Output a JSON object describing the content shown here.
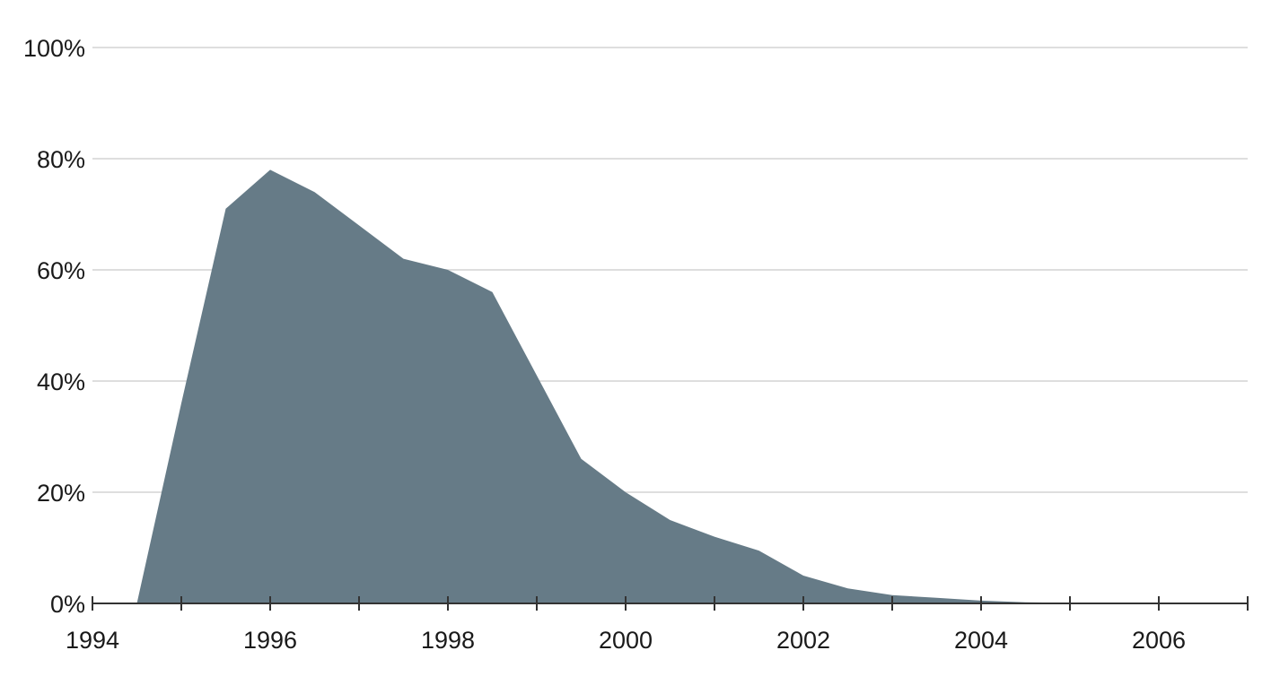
{
  "chart_data": {
    "type": "area",
    "title": "",
    "xlabel": "",
    "ylabel": "",
    "xlim": [
      1994,
      2007
    ],
    "ylim": [
      0,
      100
    ],
    "x_tick_labels": [
      "1994",
      "1996",
      "1998",
      "2000",
      "2002",
      "2004",
      "2006"
    ],
    "y_tick_labels": [
      "0%",
      "20%",
      "40%",
      "60%",
      "80%",
      "100%"
    ],
    "grid": true,
    "legend": "none",
    "fill_color": "#667b87",
    "series": [
      {
        "x": [
          1994.5,
          1995.0,
          1995.5,
          1996.0,
          1996.5,
          1997.0,
          1997.5,
          1998.0,
          1998.5,
          1999.0,
          1999.5,
          2000.0,
          2000.5,
          2001.0,
          2001.5,
          2002.0,
          2002.5,
          2003.0,
          2003.5,
          2004.0,
          2004.5,
          2005.0,
          2005.5,
          2006.0
        ],
        "values": [
          0,
          36,
          71,
          78,
          74,
          68,
          62,
          60,
          56,
          41,
          26,
          20,
          15,
          12,
          9.5,
          5,
          2.7,
          1.5,
          1.0,
          0.5,
          0.2,
          0.1,
          0.05,
          0.0
        ]
      }
    ]
  }
}
